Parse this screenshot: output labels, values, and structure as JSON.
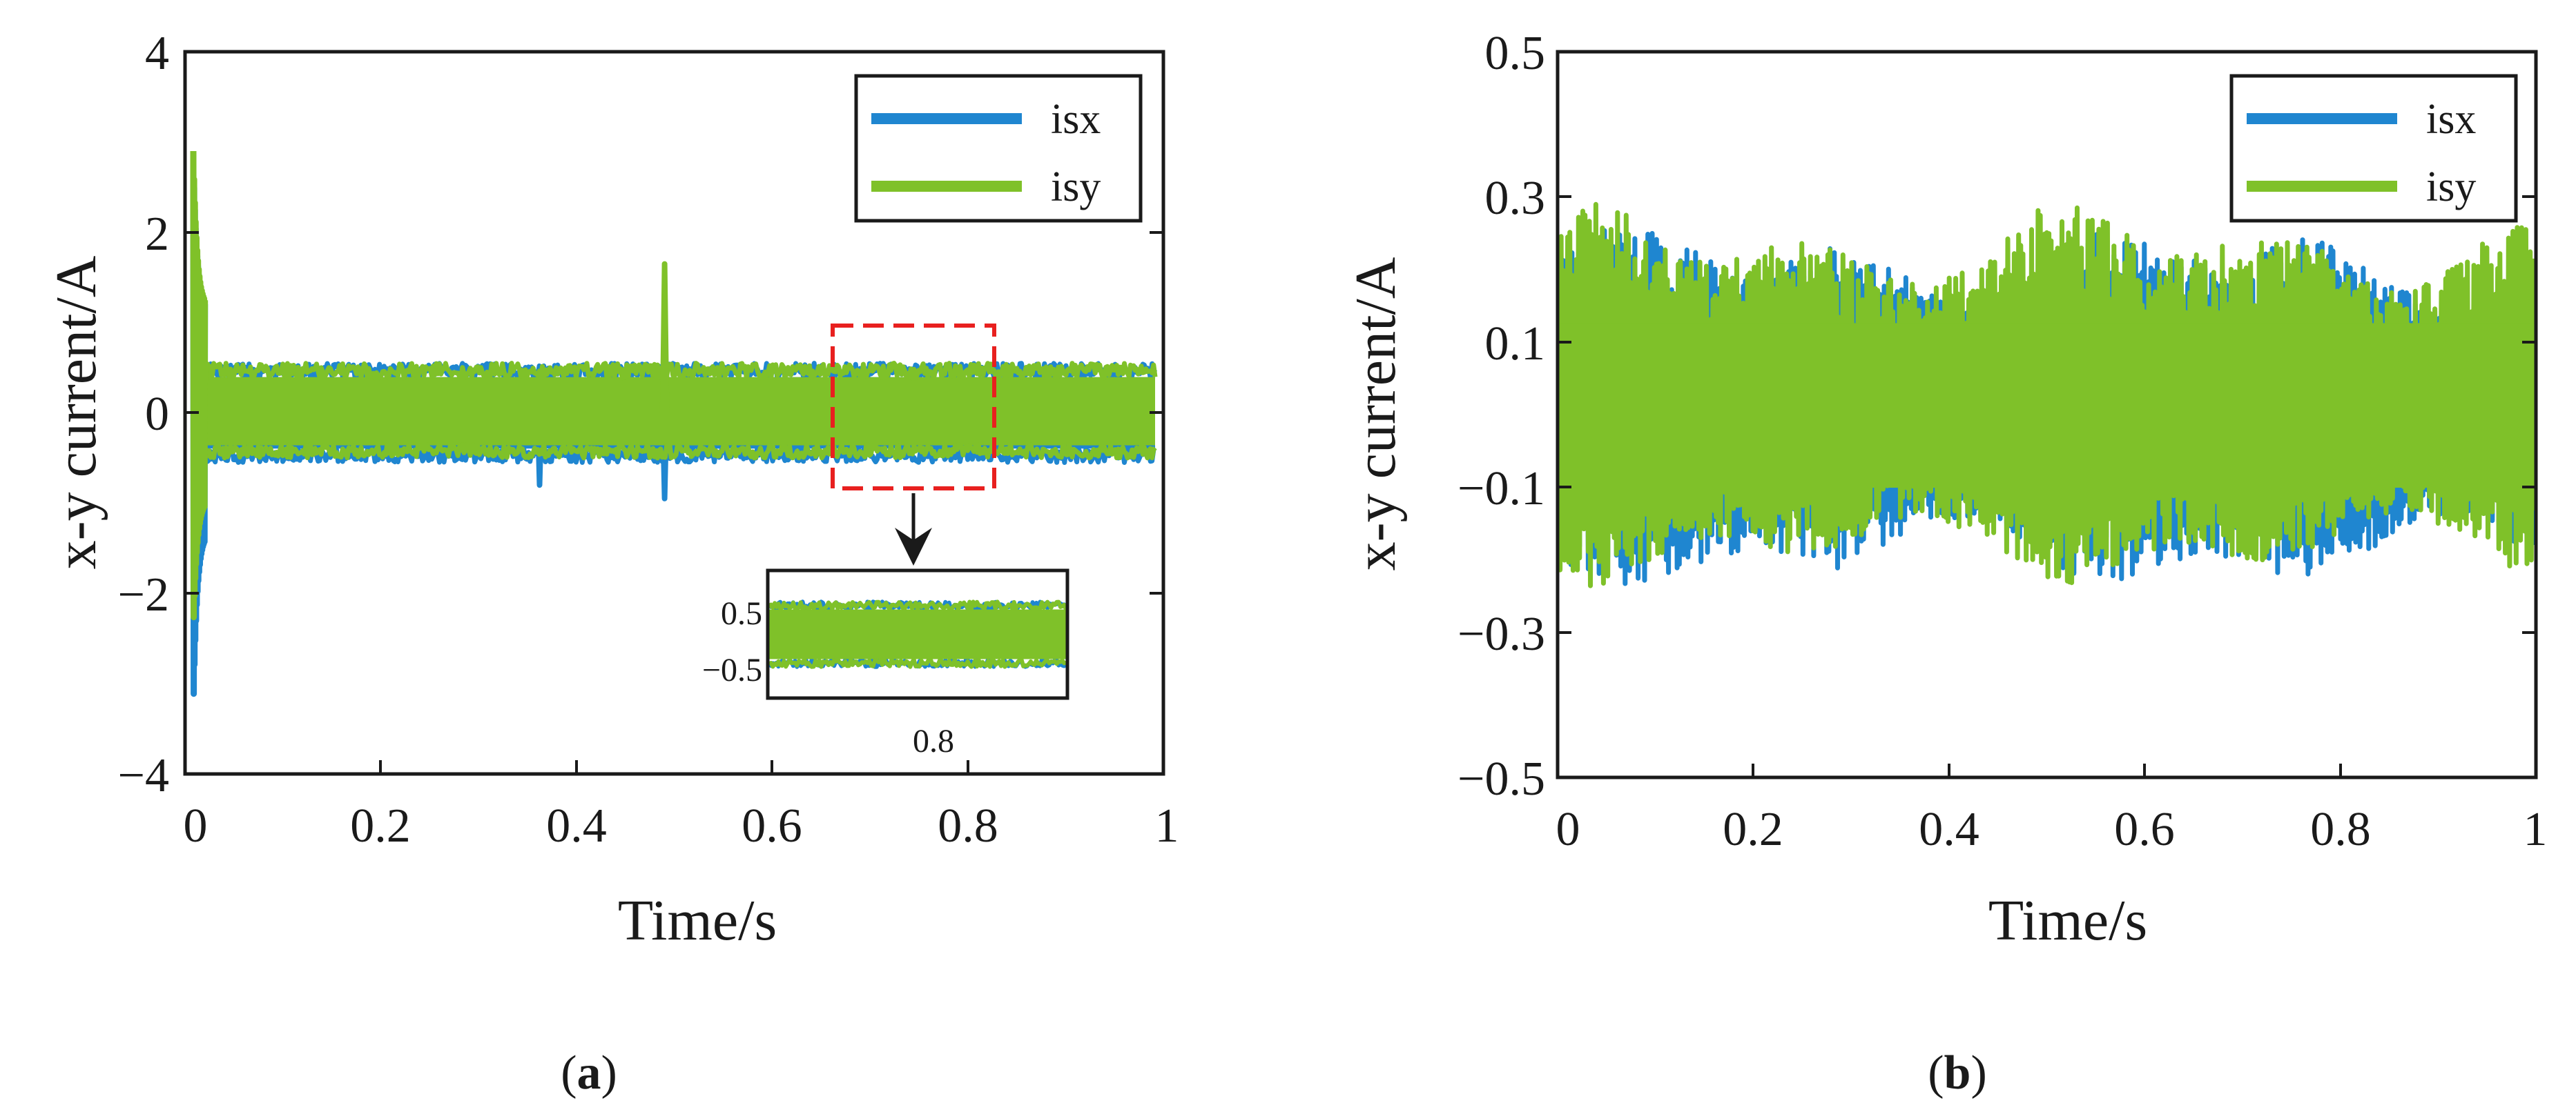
{
  "colors": {
    "isx": "#1f86d0",
    "isy": "#7fc129",
    "zoom_box": "#e8201f",
    "axis": "#1a1a1a"
  },
  "chart_data": [
    {
      "id": "a",
      "type": "line",
      "caption": {
        "open": "(",
        "letter": "a",
        "close": ")"
      },
      "xlabel": "Time/s",
      "ylabel": "x-y current/A",
      "xlim": [
        0,
        1
      ],
      "ylim": [
        -4,
        4
      ],
      "xticks": [
        0,
        0.2,
        0.4,
        0.6,
        0.8,
        1
      ],
      "xtick_labels": [
        "0",
        "0.2",
        "0.4",
        "0.6",
        "0.8",
        "1"
      ],
      "yticks": [
        4,
        2,
        0,
        -2,
        -4
      ],
      "ytick_labels": [
        "4",
        "2",
        "0",
        "−2",
        "−4"
      ],
      "legend": {
        "position": "top-right",
        "entries": [
          "isx",
          "isy"
        ]
      },
      "series": [
        {
          "name": "isx",
          "steady_band": [
            -0.55,
            0.55
          ],
          "start_transient": [
            -3.3,
            2.8
          ],
          "spikes": [
            {
              "t": 0.49,
              "value": -0.95
            },
            {
              "t": 0.36,
              "value": -0.8
            }
          ]
        },
        {
          "name": "isy",
          "steady_band": [
            -0.5,
            0.55
          ],
          "start_transient": [
            -2.4,
            2.9
          ],
          "spikes": [
            {
              "t": 0.49,
              "value": 1.65
            }
          ]
        }
      ],
      "zoom_region": {
        "x": [
          0.65,
          0.82
        ],
        "y": [
          -0.8,
          1.0
        ]
      },
      "inset": {
        "xtick_labels": [
          "0.8"
        ],
        "ytick_labels": [
          "0.5",
          "−0.5"
        ],
        "band": [
          -0.5,
          0.5
        ]
      }
    },
    {
      "id": "b",
      "type": "line",
      "caption": {
        "open": "(",
        "letter": "b",
        "close": ")"
      },
      "xlabel": "Time/s",
      "ylabel": "x-y current/A",
      "xlim": [
        0,
        1
      ],
      "ylim": [
        -0.5,
        0.5
      ],
      "xticks": [
        0,
        0.2,
        0.4,
        0.6,
        0.8,
        1
      ],
      "xtick_labels": [
        "0",
        "0.2",
        "0.4",
        "0.6",
        "0.8",
        "1"
      ],
      "yticks": [
        0.5,
        0.3,
        0.1,
        -0.1,
        -0.3,
        -0.5
      ],
      "ytick_labels": [
        "0.5",
        "0.3",
        "0.1",
        "−0.1",
        "−0.3",
        "−0.5"
      ],
      "legend": {
        "position": "top-right",
        "entries": [
          "isx",
          "isy"
        ]
      },
      "series": [
        {
          "name": "isx",
          "band": [
            -0.25,
            0.27
          ]
        },
        {
          "name": "isy",
          "band": [
            -0.24,
            0.3
          ]
        }
      ]
    }
  ]
}
